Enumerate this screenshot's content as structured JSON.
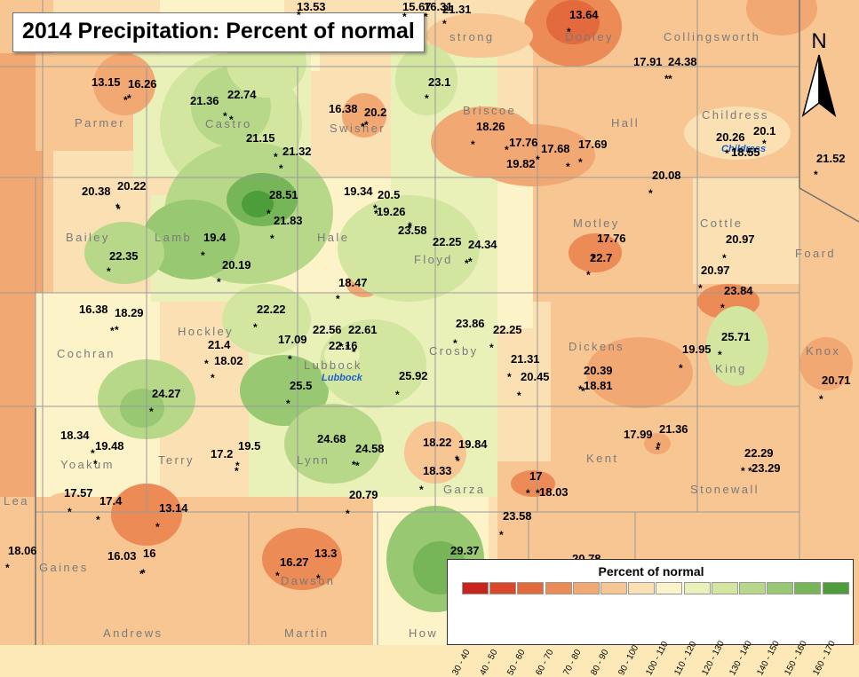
{
  "title": "2014 Precipitation: Percent of normal",
  "north_label": "N",
  "legend": {
    "title": "Percent of normal",
    "classes": [
      {
        "label": "30 - 40",
        "color": "#c8241c"
      },
      {
        "label": "40 - 50",
        "color": "#d9482b"
      },
      {
        "label": "50 - 60",
        "color": "#e36a3c"
      },
      {
        "label": "60 - 70",
        "color": "#ec8b55"
      },
      {
        "label": "70 - 80",
        "color": "#f2a872"
      },
      {
        "label": "80 - 90",
        "color": "#f7c693"
      },
      {
        "label": "90 - 100",
        "color": "#fbe0b3"
      },
      {
        "label": "100 - 110",
        "color": "#fdf3c8"
      },
      {
        "label": "110 - 120",
        "color": "#e9f0b8"
      },
      {
        "label": "120 - 130",
        "color": "#d2e6a0"
      },
      {
        "label": "130 - 140",
        "color": "#b7d889"
      },
      {
        "label": "140 - 150",
        "color": "#98c872"
      },
      {
        "label": "150 - 160",
        "color": "#76b659"
      },
      {
        "label": "160 - 170",
        "color": "#4e9d3b"
      }
    ]
  },
  "counties": [
    "Parmer",
    "Castro",
    "Swisher",
    "Briscoe",
    "Hall",
    "Childress",
    "Bailey",
    "Lamb",
    "Hale",
    "Floyd",
    "Motley",
    "Cottle",
    "Foard",
    "Cochran",
    "Hockley",
    "Lubbock",
    "Crosby",
    "Dickens",
    "King",
    "Knox",
    "Yoakum",
    "Terry",
    "Lynn",
    "Garza",
    "Kent",
    "Stonewall",
    "Gaines",
    "Dawson",
    "Andrews",
    "Martin",
    "How",
    "Lea",
    "strong",
    "Donley",
    "Collingsworth"
  ],
  "cities": [
    "Lubbock",
    "Childress"
  ],
  "values": [
    "13.64",
    "23.1",
    "13.15",
    "16.26",
    "21.36",
    "22.74",
    "16.38",
    "20.2",
    "17.91",
    "24.38",
    "18.26",
    "17.76",
    "17.68",
    "17.69",
    "19.82",
    "21.15",
    "21.32",
    "20.26",
    "20.1",
    "18.55",
    "21.52",
    "20.08",
    "20.38",
    "20.22",
    "28.51",
    "21.83",
    "19.34",
    "20.5",
    "19.26",
    "23.58",
    "22.25",
    "24.34",
    "17.76",
    "22.7",
    "20.97",
    "20.97",
    "23.84",
    "19.4",
    "20.19",
    "22.35",
    "18.47",
    "16.38",
    "18.29",
    "22.22",
    "22.56",
    "22.61",
    "22.16",
    "23.86",
    "22.25",
    "21.4",
    "18.02",
    "17.09",
    "21.31",
    "20.45",
    "20.39",
    "18.81",
    "19.95",
    "25.71",
    "20.71",
    "24.27",
    "25.5",
    "25.92",
    "18.34",
    "19.48",
    "17.2",
    "19.5",
    "24.68",
    "24.58",
    "18.22",
    "19.84",
    "17.99",
    "21.36",
    "18.33",
    "17",
    "18.03",
    "22.29",
    "23.29",
    "17.57",
    "17.4",
    "13.14",
    "20.79",
    "23.58",
    "18.06",
    "16.03",
    "16",
    "16.27",
    "13.3",
    "29.37",
    "20.78",
    "21.31",
    "13.53",
    "15.67",
    "16.31"
  ]
}
